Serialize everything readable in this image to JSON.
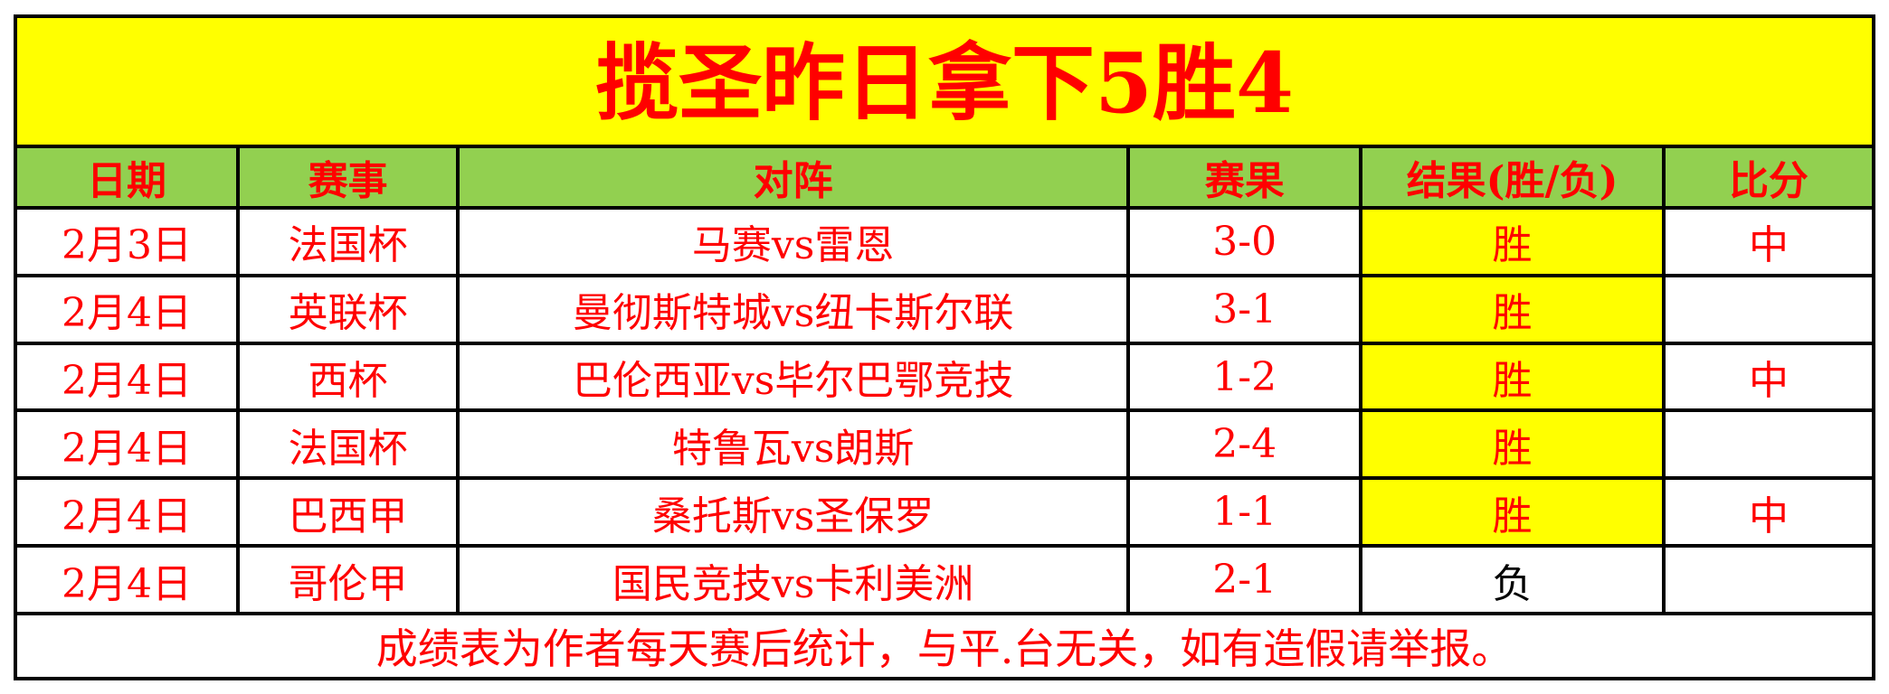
{
  "banner": {
    "title": "揽圣昨日拿下5胜4"
  },
  "table": {
    "columns": [
      {
        "key": "date",
        "label": "日期"
      },
      {
        "key": "league",
        "label": "赛事"
      },
      {
        "key": "match",
        "label": "对阵"
      },
      {
        "key": "score",
        "label": "赛果"
      },
      {
        "key": "result",
        "label": "结果(胜/负)"
      },
      {
        "key": "hit",
        "label": "比分"
      }
    ],
    "rows": [
      {
        "date": "2月3日",
        "league": "法国杯",
        "match": "马赛vs雷恩",
        "score": "3-0",
        "result": "胜",
        "win": true,
        "hit": "中"
      },
      {
        "date": "2月4日",
        "league": "英联杯",
        "match": "曼彻斯特城vs纽卡斯尔联",
        "score": "3-1",
        "result": "胜",
        "win": true,
        "hit": ""
      },
      {
        "date": "2月4日",
        "league": "西杯",
        "match": "巴伦西亚vs毕尔巴鄂竞技",
        "score": "1-2",
        "result": "胜",
        "win": true,
        "hit": "中"
      },
      {
        "date": "2月4日",
        "league": "法国杯",
        "match": "特鲁瓦vs朗斯",
        "score": "2-4",
        "result": "胜",
        "win": true,
        "hit": ""
      },
      {
        "date": "2月4日",
        "league": "巴西甲",
        "match": "桑托斯vs圣保罗",
        "score": "1-1",
        "result": "胜",
        "win": true,
        "hit": "中"
      },
      {
        "date": "2月4日",
        "league": "哥伦甲",
        "match": "国民竞技vs卡利美洲",
        "score": "2-1",
        "result": "负",
        "win": false,
        "hit": ""
      }
    ]
  },
  "footer": {
    "note": "成绩表为作者每天赛后统计，与平.台无关，如有造假请举报。"
  },
  "colors": {
    "banner_bg": "#FFFF00",
    "header_bg": "#92D050",
    "win_bg": "#FFFF00",
    "accent_text": "#FF0000",
    "lose_text": "#000000",
    "border": "#000000"
  }
}
